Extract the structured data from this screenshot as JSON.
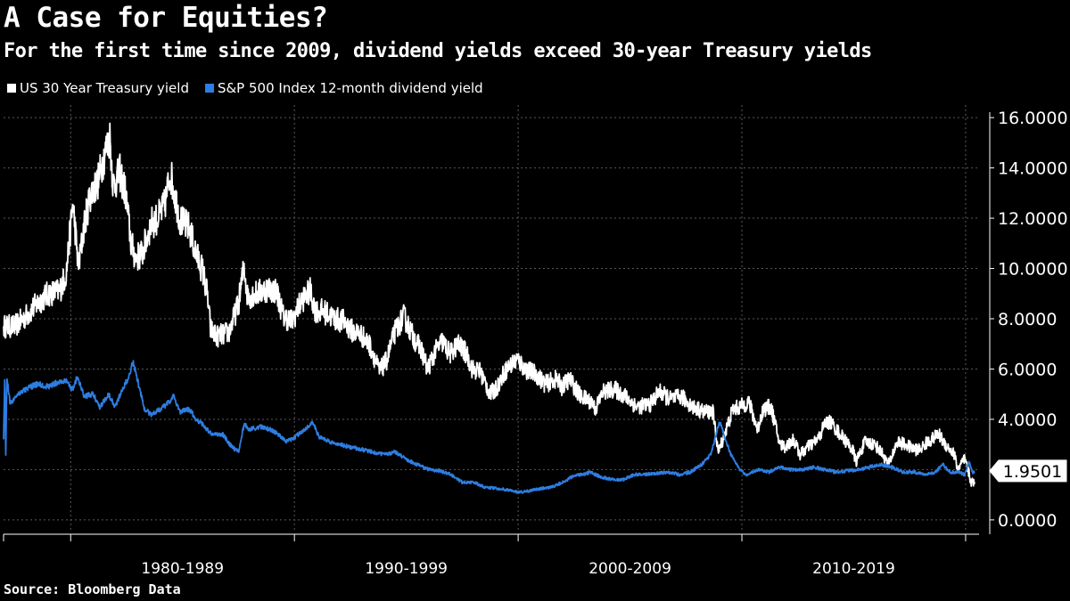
{
  "colors": {
    "treasury": "#ffffff",
    "dividend": "#2e7de1",
    "grid": "#5a5a5a",
    "background": "#000000"
  },
  "chart_data": {
    "type": "line",
    "title": "A Case for Equities?",
    "subtitle": "For the first time since 2009, dividend yields exceed 30-year Treasury yields",
    "source": "Source: Bloomberg Data",
    "xlim": [
      1977.0,
      2020.6
    ],
    "ylim": [
      -0.5,
      16.5
    ],
    "y_ticks": [
      0,
      2,
      4,
      6,
      8,
      10,
      12,
      14,
      16
    ],
    "y_tick_labels": [
      "0.0000",
      "2.0000",
      "4.0000",
      "6.0000",
      "8.0000",
      "10.0000",
      "12.0000",
      "14.0000",
      "16.0000"
    ],
    "x_period_boundaries": [
      1980,
      1990,
      2000,
      2010,
      2020
    ],
    "x_categories": [
      {
        "label": "1980-1989",
        "center": 1985
      },
      {
        "label": "1990-1999",
        "center": 1995
      },
      {
        "label": "2000-2009",
        "center": 2005
      },
      {
        "label": "2010-2019",
        "center": 2015
      }
    ],
    "grid": true,
    "legend": "top-left",
    "last_value_label": "1.9501",
    "last_value": 1.9501,
    "series": [
      {
        "name": "US 30 Year Treasury yield",
        "color": "#ffffff",
        "points": [
          [
            1977.0,
            7.7
          ],
          [
            1977.5,
            7.7
          ],
          [
            1978.0,
            8.1
          ],
          [
            1978.5,
            8.6
          ],
          [
            1979.0,
            9.0
          ],
          [
            1979.5,
            9.1
          ],
          [
            1979.8,
            9.8
          ],
          [
            1980.1,
            12.6
          ],
          [
            1980.35,
            10.0
          ],
          [
            1980.6,
            11.7
          ],
          [
            1980.9,
            13.0
          ],
          [
            1981.2,
            13.4
          ],
          [
            1981.5,
            14.5
          ],
          [
            1981.75,
            15.2
          ],
          [
            1981.9,
            13.3
          ],
          [
            1982.2,
            13.8
          ],
          [
            1982.45,
            13.0
          ],
          [
            1982.7,
            11.0
          ],
          [
            1982.9,
            10.4
          ],
          [
            1983.2,
            10.6
          ],
          [
            1983.6,
            11.8
          ],
          [
            1983.9,
            12.0
          ],
          [
            1984.2,
            12.5
          ],
          [
            1984.45,
            13.8
          ],
          [
            1984.9,
            11.9
          ],
          [
            1985.3,
            11.6
          ],
          [
            1985.6,
            10.6
          ],
          [
            1985.9,
            9.9
          ],
          [
            1986.1,
            9.0
          ],
          [
            1986.25,
            7.6
          ],
          [
            1986.5,
            7.3
          ],
          [
            1986.9,
            7.4
          ],
          [
            1987.1,
            7.5
          ],
          [
            1987.5,
            8.6
          ],
          [
            1987.75,
            10.1
          ],
          [
            1987.9,
            8.9
          ],
          [
            1988.3,
            9.0
          ],
          [
            1988.8,
            9.2
          ],
          [
            1989.2,
            9.1
          ],
          [
            1989.5,
            8.1
          ],
          [
            1989.9,
            7.9
          ],
          [
            1990.3,
            8.7
          ],
          [
            1990.7,
            9.1
          ],
          [
            1990.95,
            8.3
          ],
          [
            1991.3,
            8.3
          ],
          [
            1991.8,
            8.0
          ],
          [
            1992.2,
            7.9
          ],
          [
            1992.6,
            7.5
          ],
          [
            1992.95,
            7.4
          ],
          [
            1993.4,
            6.9
          ],
          [
            1993.8,
            5.9
          ],
          [
            1994.1,
            6.3
          ],
          [
            1994.5,
            7.5
          ],
          [
            1994.9,
            8.1
          ],
          [
            1995.3,
            7.3
          ],
          [
            1995.7,
            6.7
          ],
          [
            1995.95,
            6.0
          ],
          [
            1996.3,
            6.7
          ],
          [
            1996.6,
            7.1
          ],
          [
            1996.95,
            6.6
          ],
          [
            1997.3,
            7.0
          ],
          [
            1997.7,
            6.6
          ],
          [
            1997.95,
            6.0
          ],
          [
            1998.3,
            5.9
          ],
          [
            1998.75,
            5.0
          ],
          [
            1999.0,
            5.2
          ],
          [
            1999.4,
            5.9
          ],
          [
            1999.95,
            6.4
          ],
          [
            2000.3,
            6.0
          ],
          [
            2000.8,
            5.8
          ],
          [
            2001.2,
            5.4
          ],
          [
            2001.7,
            5.6
          ],
          [
            2001.95,
            5.3
          ],
          [
            2002.3,
            5.6
          ],
          [
            2002.8,
            4.9
          ],
          [
            2003.3,
            4.7
          ],
          [
            2003.45,
            4.4
          ],
          [
            2003.8,
            5.1
          ],
          [
            2004.3,
            5.2
          ],
          [
            2004.8,
            4.9
          ],
          [
            2005.3,
            4.5
          ],
          [
            2005.9,
            4.6
          ],
          [
            2006.3,
            5.1
          ],
          [
            2006.8,
            4.8
          ],
          [
            2007.3,
            4.9
          ],
          [
            2007.8,
            4.5
          ],
          [
            2008.3,
            4.3
          ],
          [
            2008.7,
            4.3
          ],
          [
            2008.95,
            2.7
          ],
          [
            2009.3,
            3.6
          ],
          [
            2009.6,
            4.4
          ],
          [
            2009.95,
            4.5
          ],
          [
            2010.3,
            4.7
          ],
          [
            2010.7,
            3.6
          ],
          [
            2010.95,
            4.4
          ],
          [
            2011.3,
            4.5
          ],
          [
            2011.7,
            3.0
          ],
          [
            2011.95,
            2.9
          ],
          [
            2012.3,
            3.2
          ],
          [
            2012.6,
            2.6
          ],
          [
            2012.95,
            2.9
          ],
          [
            2013.4,
            3.2
          ],
          [
            2013.7,
            3.8
          ],
          [
            2013.95,
            3.9
          ],
          [
            2014.4,
            3.4
          ],
          [
            2014.95,
            2.8
          ],
          [
            2015.1,
            2.3
          ],
          [
            2015.5,
            3.1
          ],
          [
            2015.95,
            3.0
          ],
          [
            2016.3,
            2.6
          ],
          [
            2016.55,
            2.2
          ],
          [
            2016.95,
            3.1
          ],
          [
            2017.3,
            3.0
          ],
          [
            2017.7,
            2.8
          ],
          [
            2017.95,
            2.8
          ],
          [
            2018.3,
            3.1
          ],
          [
            2018.8,
            3.4
          ],
          [
            2019.1,
            3.0
          ],
          [
            2019.5,
            2.6
          ],
          [
            2019.65,
            2.0
          ],
          [
            2019.95,
            2.4
          ],
          [
            2020.1,
            2.0
          ],
          [
            2020.25,
            1.5
          ],
          [
            2020.4,
            1.5
          ]
        ]
      },
      {
        "name": "S&P 500 Index 12-month dividend yield",
        "color": "#2e7de1",
        "points": [
          [
            1977.0,
            3.2
          ],
          [
            1977.05,
            5.5
          ],
          [
            1977.1,
            2.6
          ],
          [
            1977.15,
            5.7
          ],
          [
            1977.3,
            4.6
          ],
          [
            1977.6,
            5.0
          ],
          [
            1978.0,
            5.2
          ],
          [
            1978.5,
            5.4
          ],
          [
            1979.0,
            5.3
          ],
          [
            1979.5,
            5.5
          ],
          [
            1979.8,
            5.5
          ],
          [
            1980.1,
            5.2
          ],
          [
            1980.3,
            5.7
          ],
          [
            1980.6,
            4.9
          ],
          [
            1981.0,
            5.0
          ],
          [
            1981.3,
            4.5
          ],
          [
            1981.7,
            5.0
          ],
          [
            1982.0,
            4.5
          ],
          [
            1982.3,
            5.2
          ],
          [
            1982.5,
            5.5
          ],
          [
            1982.8,
            6.3
          ],
          [
            1983.0,
            5.5
          ],
          [
            1983.3,
            4.4
          ],
          [
            1983.6,
            4.2
          ],
          [
            1984.0,
            4.4
          ],
          [
            1984.3,
            4.6
          ],
          [
            1984.6,
            4.9
          ],
          [
            1984.9,
            4.3
          ],
          [
            1985.3,
            4.4
          ],
          [
            1985.6,
            4.0
          ],
          [
            1985.9,
            3.8
          ],
          [
            1986.3,
            3.4
          ],
          [
            1986.8,
            3.4
          ],
          [
            1987.2,
            2.9
          ],
          [
            1987.5,
            2.7
          ],
          [
            1987.75,
            3.8
          ],
          [
            1988.0,
            3.6
          ],
          [
            1988.5,
            3.7
          ],
          [
            1988.9,
            3.6
          ],
          [
            1989.3,
            3.4
          ],
          [
            1989.6,
            3.1
          ],
          [
            1989.9,
            3.2
          ],
          [
            1990.3,
            3.5
          ],
          [
            1990.5,
            3.6
          ],
          [
            1990.8,
            3.9
          ],
          [
            1991.1,
            3.3
          ],
          [
            1991.6,
            3.1
          ],
          [
            1992.0,
            3.0
          ],
          [
            1992.5,
            2.9
          ],
          [
            1993.0,
            2.8
          ],
          [
            1993.5,
            2.7
          ],
          [
            1994.0,
            2.6
          ],
          [
            1994.5,
            2.7
          ],
          [
            1995.0,
            2.4
          ],
          [
            1995.5,
            2.2
          ],
          [
            1996.0,
            2.0
          ],
          [
            1996.5,
            1.95
          ],
          [
            1997.0,
            1.8
          ],
          [
            1997.5,
            1.5
          ],
          [
            1998.0,
            1.5
          ],
          [
            1998.5,
            1.3
          ],
          [
            1999.0,
            1.25
          ],
          [
            1999.5,
            1.2
          ],
          [
            2000.0,
            1.1
          ],
          [
            2000.5,
            1.15
          ],
          [
            2001.0,
            1.25
          ],
          [
            2001.5,
            1.3
          ],
          [
            2002.0,
            1.5
          ],
          [
            2002.6,
            1.8
          ],
          [
            2002.9,
            1.8
          ],
          [
            2003.2,
            1.9
          ],
          [
            2003.7,
            1.7
          ],
          [
            2004.2,
            1.6
          ],
          [
            2004.7,
            1.6
          ],
          [
            2005.2,
            1.8
          ],
          [
            2005.7,
            1.8
          ],
          [
            2006.2,
            1.85
          ],
          [
            2006.7,
            1.9
          ],
          [
            2007.2,
            1.8
          ],
          [
            2007.7,
            1.9
          ],
          [
            2008.2,
            2.2
          ],
          [
            2008.6,
            2.6
          ],
          [
            2008.85,
            3.4
          ],
          [
            2009.0,
            3.9
          ],
          [
            2009.2,
            3.4
          ],
          [
            2009.5,
            2.6
          ],
          [
            2009.9,
            2.0
          ],
          [
            2010.2,
            1.8
          ],
          [
            2010.7,
            2.0
          ],
          [
            2011.2,
            1.9
          ],
          [
            2011.7,
            2.1
          ],
          [
            2012.2,
            2.0
          ],
          [
            2012.7,
            2.0
          ],
          [
            2013.2,
            2.1
          ],
          [
            2013.7,
            2.0
          ],
          [
            2014.2,
            1.9
          ],
          [
            2014.7,
            1.95
          ],
          [
            2015.2,
            2.0
          ],
          [
            2015.7,
            2.1
          ],
          [
            2016.2,
            2.2
          ],
          [
            2016.7,
            2.1
          ],
          [
            2017.2,
            1.9
          ],
          [
            2017.7,
            1.9
          ],
          [
            2018.2,
            1.8
          ],
          [
            2018.7,
            1.9
          ],
          [
            2018.95,
            2.25
          ],
          [
            2019.3,
            1.9
          ],
          [
            2019.7,
            1.9
          ],
          [
            2019.95,
            1.8
          ],
          [
            2020.15,
            2.3
          ],
          [
            2020.3,
            1.9
          ],
          [
            2020.4,
            1.9
          ]
        ]
      }
    ]
  }
}
